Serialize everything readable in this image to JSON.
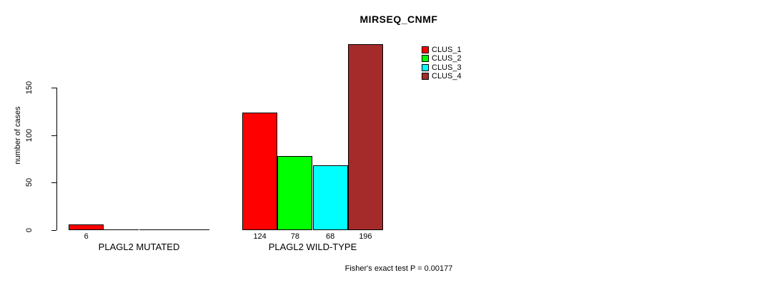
{
  "title": "MIRSEQ_CNMF",
  "chart_data": {
    "type": "bar",
    "title": "MIRSEQ_CNMF",
    "xlabel": "",
    "ylabel": "number of cases",
    "ylim": [
      0,
      150
    ],
    "yticks": [
      "0",
      "50",
      "100",
      "150"
    ],
    "grid": false,
    "legend_position": "top-right",
    "categories": [
      "PLAGL2 MUTATED",
      "PLAGL2 WILD-TYPE"
    ],
    "series": [
      {
        "name": "CLUS_1",
        "color": "#ff0000",
        "values": [
          6,
          124
        ]
      },
      {
        "name": "CLUS_2",
        "color": "#00ff00",
        "values": [
          0,
          78
        ]
      },
      {
        "name": "CLUS_3",
        "color": "#00ffff",
        "values": [
          0,
          68
        ]
      },
      {
        "name": "CLUS_4",
        "color": "#a52a2a",
        "values": [
          0,
          196
        ]
      }
    ],
    "bar_value_labels": [
      [
        "6",
        "",
        "",
        ""
      ],
      [
        "124",
        "78",
        "68",
        "196"
      ]
    ],
    "annotation": "Fisher's exact test P = 0.00177"
  },
  "colors": {
    "axis": "#000000",
    "background": "#ffffff",
    "text": "#000000"
  }
}
